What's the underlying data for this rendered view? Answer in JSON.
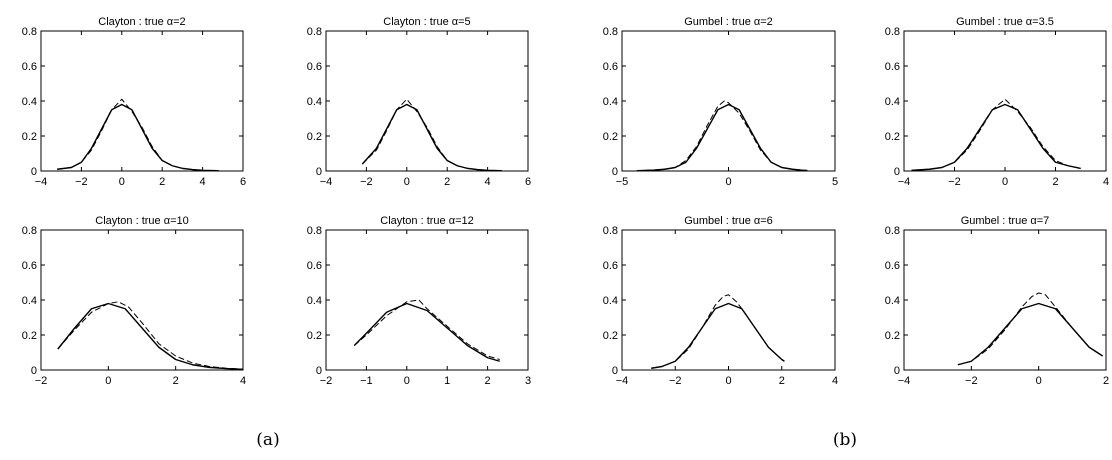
{
  "panel_labels": [
    "(a)",
    "(b)"
  ],
  "style": {
    "line_color": "#000000",
    "background": "#ffffff"
  },
  "chart_data": [
    {
      "type": "line",
      "title": "Clayton : true α=2",
      "xlim": [
        -4,
        6
      ],
      "ylim": [
        0,
        0.8
      ],
      "xticks": [
        -4,
        -2,
        0,
        2,
        4,
        6
      ],
      "xtick_labels": [
        "−4",
        "−2",
        "0",
        "2",
        "4",
        "6"
      ],
      "yticks": [
        0,
        0.2,
        0.4,
        0.6,
        0.8
      ],
      "ytick_labels": [
        "0",
        "0.2",
        "0.4",
        "0.6",
        "0.8"
      ],
      "series": [
        {
          "style": "solid",
          "x": [
            -3.2,
            -2.5,
            -2,
            -1.5,
            -1,
            -0.5,
            0,
            0.5,
            1,
            1.5,
            2,
            2.5,
            3,
            3.5,
            4,
            4.8
          ],
          "y": [
            0.01,
            0.02,
            0.05,
            0.13,
            0.24,
            0.35,
            0.38,
            0.35,
            0.24,
            0.13,
            0.06,
            0.03,
            0.015,
            0.008,
            0.004,
            0.002
          ]
        },
        {
          "style": "dashed",
          "x": [
            -3.2,
            -2.5,
            -2,
            -1.5,
            -1,
            -0.5,
            0,
            0.5,
            1,
            1.5,
            2,
            2.5,
            3,
            3.5,
            4,
            4.8
          ],
          "y": [
            0.01,
            0.02,
            0.05,
            0.12,
            0.23,
            0.35,
            0.41,
            0.34,
            0.25,
            0.14,
            0.06,
            0.03,
            0.015,
            0.007,
            0.003,
            0.002
          ]
        }
      ]
    },
    {
      "type": "line",
      "title": "Clayton : true α=5",
      "xlim": [
        -4,
        6
      ],
      "ylim": [
        0,
        0.8
      ],
      "xticks": [
        -4,
        -2,
        0,
        2,
        4,
        6
      ],
      "xtick_labels": [
        "−4",
        "−2",
        "0",
        "2",
        "4",
        "6"
      ],
      "yticks": [
        0,
        0.2,
        0.4,
        0.6,
        0.8
      ],
      "ytick_labels": [
        "0",
        "0.2",
        "0.4",
        "0.6",
        "0.8"
      ],
      "series": [
        {
          "style": "solid",
          "x": [
            -2.2,
            -1.5,
            -1,
            -0.5,
            0,
            0.5,
            1,
            1.5,
            2,
            2.5,
            3,
            3.5,
            4,
            4.7
          ],
          "y": [
            0.04,
            0.13,
            0.24,
            0.35,
            0.38,
            0.35,
            0.24,
            0.13,
            0.06,
            0.03,
            0.015,
            0.008,
            0.004,
            0.002
          ]
        },
        {
          "style": "dashed",
          "x": [
            -2.2,
            -1.5,
            -1,
            -0.5,
            0,
            0.5,
            1,
            1.5,
            2,
            2.5,
            3,
            3.5,
            4,
            4.7
          ],
          "y": [
            0.04,
            0.12,
            0.23,
            0.35,
            0.41,
            0.34,
            0.25,
            0.14,
            0.06,
            0.03,
            0.015,
            0.007,
            0.003,
            0.002
          ]
        }
      ]
    },
    {
      "type": "line",
      "title": "Clayton : true α=10",
      "xlim": [
        -2,
        4
      ],
      "ylim": [
        0,
        0.8
      ],
      "xticks": [
        -2,
        0,
        2,
        4
      ],
      "xtick_labels": [
        "−2",
        "0",
        "2",
        "4"
      ],
      "yticks": [
        0,
        0.2,
        0.4,
        0.6,
        0.8
      ],
      "ytick_labels": [
        "0",
        "0.2",
        "0.4",
        "0.6",
        "0.8"
      ],
      "series": [
        {
          "style": "solid",
          "x": [
            -1.5,
            -1,
            -0.5,
            0,
            0.5,
            1,
            1.5,
            2,
            2.5,
            3,
            3.5,
            4
          ],
          "y": [
            0.12,
            0.24,
            0.35,
            0.38,
            0.35,
            0.24,
            0.13,
            0.06,
            0.03,
            0.015,
            0.008,
            0.004
          ]
        },
        {
          "style": "dashed",
          "x": [
            -1.5,
            -1,
            -0.5,
            0,
            0.3,
            0.6,
            1,
            1.5,
            2,
            2.5,
            3,
            3.5,
            4
          ],
          "y": [
            0.12,
            0.23,
            0.33,
            0.38,
            0.39,
            0.36,
            0.27,
            0.15,
            0.08,
            0.04,
            0.02,
            0.01,
            0.005
          ]
        }
      ]
    },
    {
      "type": "line",
      "title": "Clayton : true α=12",
      "xlim": [
        -2,
        3
      ],
      "ylim": [
        0,
        0.8
      ],
      "xticks": [
        -2,
        -1,
        0,
        1,
        2,
        3
      ],
      "xtick_labels": [
        "−2",
        "−1",
        "0",
        "1",
        "2",
        "3"
      ],
      "yticks": [
        0,
        0.2,
        0.4,
        0.6,
        0.8
      ],
      "ytick_labels": [
        "0",
        "0.2",
        "0.4",
        "0.6",
        "0.8"
      ],
      "series": [
        {
          "style": "solid",
          "x": [
            -1.3,
            -1,
            -0.5,
            0,
            0.5,
            1,
            1.5,
            2,
            2.3
          ],
          "y": [
            0.14,
            0.21,
            0.33,
            0.38,
            0.34,
            0.24,
            0.14,
            0.07,
            0.05
          ]
        },
        {
          "style": "dashed",
          "x": [
            -1.3,
            -1,
            -0.5,
            0,
            0.3,
            0.5,
            1,
            1.5,
            2,
            2.3
          ],
          "y": [
            0.14,
            0.2,
            0.31,
            0.39,
            0.4,
            0.35,
            0.25,
            0.15,
            0.08,
            0.06
          ]
        }
      ]
    },
    {
      "type": "line",
      "title": "Gumbel : true α=2",
      "xlim": [
        -5,
        5
      ],
      "ylim": [
        0,
        0.8
      ],
      "xticks": [
        -5,
        0,
        5
      ],
      "xtick_labels": [
        "−5",
        "0",
        "5"
      ],
      "yticks": [
        0,
        0.2,
        0.4,
        0.6,
        0.8
      ],
      "ytick_labels": [
        "0",
        "0.2",
        "0.4",
        "0.6",
        "0.8"
      ],
      "series": [
        {
          "style": "solid",
          "x": [
            -4.3,
            -3.5,
            -3,
            -2.5,
            -2,
            -1.5,
            -1,
            -0.5,
            0,
            0.5,
            1,
            1.5,
            2,
            2.5,
            3,
            3.5,
            3.7
          ],
          "y": [
            0.002,
            0.005,
            0.01,
            0.02,
            0.05,
            0.13,
            0.24,
            0.35,
            0.38,
            0.35,
            0.24,
            0.13,
            0.05,
            0.02,
            0.01,
            0.004,
            0.003
          ]
        },
        {
          "style": "dashed",
          "x": [
            -4.3,
            -3.5,
            -3,
            -2.5,
            -2,
            -1.5,
            -1,
            -0.5,
            -0.2,
            0,
            0.5,
            1,
            1.5,
            2,
            2.5,
            3,
            3.7
          ],
          "y": [
            0.002,
            0.005,
            0.01,
            0.02,
            0.06,
            0.14,
            0.26,
            0.37,
            0.4,
            0.39,
            0.33,
            0.23,
            0.12,
            0.05,
            0.02,
            0.01,
            0.003
          ]
        }
      ]
    },
    {
      "type": "line",
      "title": "Gumbel : true α=3.5",
      "xlim": [
        -4,
        4
      ],
      "ylim": [
        0,
        0.8
      ],
      "xticks": [
        -4,
        -2,
        0,
        2,
        4
      ],
      "xtick_labels": [
        "−4",
        "−2",
        "0",
        "2",
        "4"
      ],
      "yticks": [
        0,
        0.2,
        0.4,
        0.6,
        0.8
      ],
      "ytick_labels": [
        "0",
        "0.2",
        "0.4",
        "0.6",
        "0.8"
      ],
      "series": [
        {
          "style": "solid",
          "x": [
            -3.7,
            -3,
            -2.5,
            -2,
            -1.5,
            -1,
            -0.5,
            0,
            0.5,
            1,
            1.5,
            2,
            2.5,
            3
          ],
          "y": [
            0.004,
            0.01,
            0.02,
            0.05,
            0.13,
            0.24,
            0.35,
            0.38,
            0.35,
            0.24,
            0.13,
            0.05,
            0.03,
            0.015
          ]
        },
        {
          "style": "dashed",
          "x": [
            -3.7,
            -3,
            -2.5,
            -2,
            -1.5,
            -1,
            -0.5,
            0,
            0.5,
            1,
            1.5,
            2,
            2.5,
            3
          ],
          "y": [
            0.004,
            0.01,
            0.02,
            0.05,
            0.12,
            0.23,
            0.35,
            0.41,
            0.34,
            0.25,
            0.14,
            0.06,
            0.03,
            0.015
          ]
        }
      ]
    },
    {
      "type": "line",
      "title": "Gumbel : true α=6",
      "xlim": [
        -4,
        4
      ],
      "ylim": [
        0,
        0.8
      ],
      "xticks": [
        -4,
        -2,
        0,
        2,
        4
      ],
      "xtick_labels": [
        "−4",
        "−2",
        "0",
        "2",
        "4"
      ],
      "yticks": [
        0,
        0.2,
        0.4,
        0.6,
        0.8
      ],
      "ytick_labels": [
        "0",
        "0.2",
        "0.4",
        "0.6",
        "0.8"
      ],
      "series": [
        {
          "style": "solid",
          "x": [
            -2.9,
            -2.5,
            -2,
            -1.5,
            -1,
            -0.5,
            0,
            0.5,
            1,
            1.5,
            2,
            2.1
          ],
          "y": [
            0.01,
            0.02,
            0.05,
            0.13,
            0.24,
            0.35,
            0.38,
            0.35,
            0.24,
            0.13,
            0.06,
            0.05
          ]
        },
        {
          "style": "dashed",
          "x": [
            -2.9,
            -2.5,
            -2,
            -1.5,
            -1,
            -0.5,
            -0.2,
            0,
            0.3,
            0.6,
            1,
            1.5,
            2,
            2.1
          ],
          "y": [
            0.01,
            0.02,
            0.05,
            0.12,
            0.24,
            0.37,
            0.42,
            0.43,
            0.39,
            0.33,
            0.24,
            0.13,
            0.06,
            0.05
          ]
        }
      ]
    },
    {
      "type": "line",
      "title": "Gumbel : true α=7",
      "xlim": [
        -4,
        2
      ],
      "ylim": [
        0,
        0.8
      ],
      "xticks": [
        -4,
        -2,
        0,
        2
      ],
      "xtick_labels": [
        "−4",
        "−2",
        "0",
        "2"
      ],
      "yticks": [
        0,
        0.2,
        0.4,
        0.6,
        0.8
      ],
      "ytick_labels": [
        "0",
        "0.2",
        "0.4",
        "0.6",
        "0.8"
      ],
      "series": [
        {
          "style": "solid",
          "x": [
            -2.4,
            -2,
            -1.5,
            -1,
            -0.5,
            0,
            0.5,
            1,
            1.5,
            1.9
          ],
          "y": [
            0.03,
            0.05,
            0.13,
            0.24,
            0.35,
            0.38,
            0.35,
            0.24,
            0.13,
            0.08
          ]
        },
        {
          "style": "dashed",
          "x": [
            -2.4,
            -2,
            -1.5,
            -1,
            -0.5,
            -0.2,
            0,
            0.2,
            0.5,
            1,
            1.5,
            1.9
          ],
          "y": [
            0.03,
            0.05,
            0.12,
            0.23,
            0.36,
            0.42,
            0.44,
            0.43,
            0.36,
            0.24,
            0.13,
            0.08
          ]
        }
      ]
    }
  ]
}
